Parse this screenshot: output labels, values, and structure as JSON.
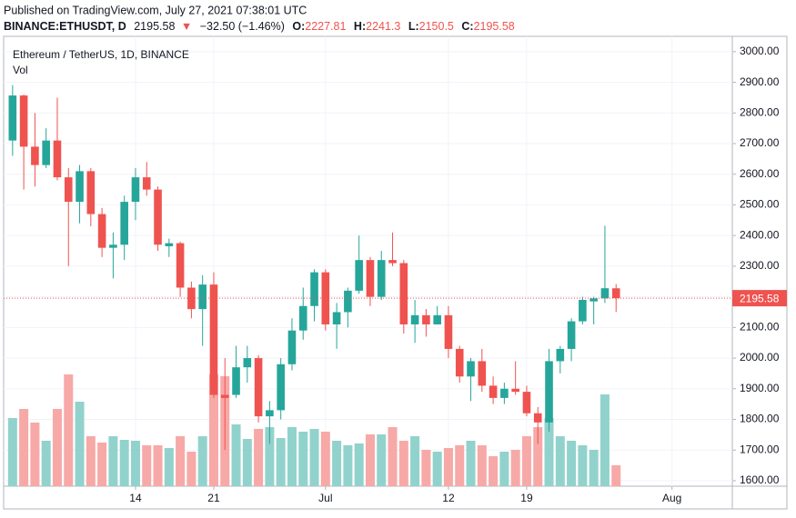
{
  "header": {
    "published": "Published on TradingView.com, July 27, 2021 07:38:01 UTC",
    "symbol": "BINANCE:ETHUSDT, D",
    "direction": "▼",
    "change": "−32.50 (−1.46%)",
    "o_label": "O:",
    "h_label": "H:",
    "l_label": "L:",
    "c_label": "C:"
  },
  "chart_data": {
    "type": "candlestick",
    "title": "Ethereum / TetherUS, 1D, BINANCE",
    "subtitle": "Vol",
    "x": [
      0,
      1,
      2,
      3,
      4,
      5,
      6,
      7,
      8,
      9,
      10,
      11,
      12,
      13,
      14,
      15,
      16,
      17,
      18,
      19,
      20,
      21,
      22,
      23,
      24,
      25,
      26,
      27,
      28,
      29,
      30,
      31,
      32,
      33,
      34,
      35,
      36,
      37,
      38,
      39,
      40,
      41,
      42,
      43,
      44,
      45,
      46,
      47,
      48,
      49,
      50,
      51,
      52,
      53,
      54
    ],
    "open": [
      2710,
      2857,
      2690,
      2630,
      2710,
      2590,
      2510,
      2610,
      2470,
      2360,
      2370,
      2510,
      2590,
      2550,
      2365,
      2375,
      2230,
      2160,
      2240,
      1880,
      1880,
      1970,
      2000,
      1810,
      1830,
      1980,
      2090,
      2170,
      2280,
      2110,
      2150,
      2220,
      2320,
      2200,
      2320,
      2310,
      2110,
      2140,
      2110,
      2140,
      2030,
      1940,
      1990,
      1910,
      1870,
      1900,
      1890,
      1820,
      1790,
      1990,
      2030,
      2120,
      2185,
      2195,
      2227.81
    ],
    "high": [
      2891,
      2860,
      2800,
      2750,
      2850,
      2620,
      2630,
      2620,
      2490,
      2410,
      2530,
      2620,
      2640,
      2560,
      2390,
      2380,
      2250,
      2270,
      2280,
      2000,
      2040,
      2040,
      2010,
      1860,
      2000,
      2130,
      2230,
      2290,
      2290,
      2180,
      2230,
      2400,
      2330,
      2350,
      2410,
      2320,
      2190,
      2160,
      2170,
      2170,
      2040,
      2000,
      2030,
      1940,
      1920,
      1990,
      1910,
      1840,
      2030,
      2040,
      2130,
      2200,
      2200,
      2432,
      2241.3
    ],
    "low": [
      2660,
      2550,
      2560,
      2620,
      2580,
      2300,
      2440,
      2430,
      2330,
      2260,
      2320,
      2450,
      2530,
      2350,
      2330,
      2200,
      2130,
      2040,
      1870,
      1700,
      1870,
      1920,
      1790,
      1720,
      1800,
      1960,
      2060,
      2120,
      2090,
      2030,
      2100,
      2210,
      2170,
      2190,
      2300,
      2080,
      2050,
      2070,
      2110,
      2000,
      1920,
      1860,
      1890,
      1850,
      1850,
      1880,
      1810,
      1720,
      1760,
      1950,
      1990,
      2110,
      2110,
      2180,
      2150.5
    ],
    "close": [
      2857,
      2690,
      2630,
      2710,
      2590,
      2510,
      2610,
      2470,
      2360,
      2370,
      2510,
      2590,
      2550,
      2370,
      2375,
      2230,
      2160,
      2240,
      1880,
      1870,
      1970,
      2000,
      1810,
      1830,
      1980,
      2090,
      2170,
      2280,
      2110,
      2150,
      2220,
      2320,
      2200,
      2320,
      2310,
      2110,
      2140,
      2110,
      2140,
      2030,
      1940,
      1990,
      1910,
      1870,
      1900,
      1890,
      1820,
      1790,
      1990,
      2030,
      2120,
      2190,
      2195,
      2228,
      2195.58
    ],
    "volume": [
      75,
      85,
      70,
      50,
      85,
      123,
      93,
      55,
      48,
      55,
      51,
      50,
      45,
      45,
      42,
      55,
      38,
      55,
      123,
      121,
      68,
      52,
      63,
      65,
      53,
      65,
      60,
      63,
      60,
      50,
      45,
      47,
      57,
      57,
      65,
      50,
      55,
      40,
      38,
      42,
      45,
      50,
      45,
      33,
      38,
      40,
      55,
      65,
      75,
      55,
      50,
      45,
      40,
      101,
      23
    ],
    "up_color": "#26a69a",
    "down_color": "#ef5350",
    "up_volume_color": "#92d2cc",
    "down_volume_color": "#f7a9a7",
    "xlim": [
      -0.8,
      64.4
    ],
    "ylim": [
      1582,
      3050
    ],
    "xticks": [
      {
        "value": 11,
        "label": "14"
      },
      {
        "value": 18,
        "label": "21"
      },
      {
        "value": 28,
        "label": "Jul"
      },
      {
        "value": 39,
        "label": "12"
      },
      {
        "value": 46,
        "label": "19"
      },
      {
        "value": 59,
        "label": "Aug"
      }
    ],
    "yticks": [
      {
        "value": 1600,
        "label": "1600.00"
      },
      {
        "value": 1700,
        "label": "1700.00"
      },
      {
        "value": 1800,
        "label": "1800.00"
      },
      {
        "value": 1900,
        "label": "1900.00"
      },
      {
        "value": 2000,
        "label": "2000.00"
      },
      {
        "value": 2100,
        "label": "2100.00"
      },
      {
        "value": 2200,
        "label": "2200.00"
      },
      {
        "value": 2300,
        "label": "2300.00"
      },
      {
        "value": 2400,
        "label": "2400.00"
      },
      {
        "value": 2500,
        "label": "2500.00"
      },
      {
        "value": 2600,
        "label": "2600.00"
      },
      {
        "value": 2700,
        "label": "2700.00"
      },
      {
        "value": 2800,
        "label": "2800.00"
      },
      {
        "value": 2900,
        "label": "2900.00"
      },
      {
        "value": 3000,
        "label": "3000.00"
      }
    ],
    "grid": true,
    "last_price_line": true
  }
}
